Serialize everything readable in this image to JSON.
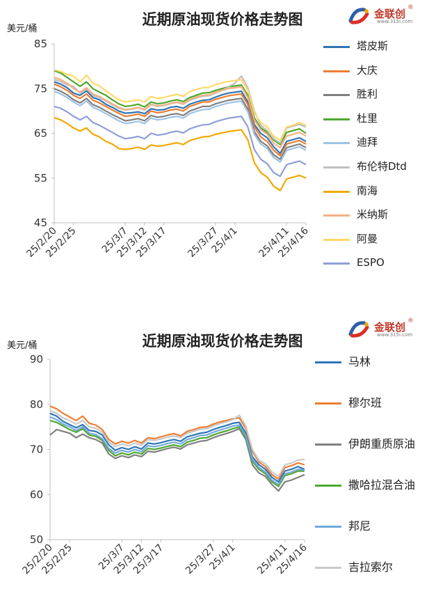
{
  "charts": [
    {
      "title": "近期原油现货价格走势图",
      "unit": "美元/桶",
      "logo": {
        "name": "金联创",
        "reg": "®",
        "url": "www.315i.com"
      }
    },
    {
      "title": "近期原油现货价格走势图",
      "unit": "美元/桶",
      "logo": {
        "name": "金联创",
        "reg": "®",
        "url": "www.315i.com"
      }
    }
  ],
  "chart_data": [
    {
      "type": "line",
      "title": "近期原油现货价格走势图",
      "ylabel": "美元/桶",
      "ylim": [
        45,
        85
      ],
      "yticks": [
        45,
        55,
        65,
        75,
        85
      ],
      "x": [
        "25/2/20",
        "25/2/21",
        "25/2/24",
        "25/2/25",
        "25/2/26",
        "25/2/27",
        "25/2/28",
        "25/3/3",
        "25/3/4",
        "25/3/5",
        "25/3/6",
        "25/3/7",
        "25/3/10",
        "25/3/11",
        "25/3/12",
        "25/3/13",
        "25/3/14",
        "25/3/17",
        "25/3/18",
        "25/3/19",
        "25/3/20",
        "25/3/21",
        "25/3/24",
        "25/3/25",
        "25/3/26",
        "25/3/27",
        "25/3/28",
        "25/3/31",
        "25/4/1",
        "25/4/2",
        "25/4/3",
        "25/4/4",
        "25/4/7",
        "25/4/8",
        "25/4/9",
        "25/4/10",
        "25/4/11",
        "25/4/14",
        "25/4/15",
        "25/4/16"
      ],
      "xticks": [
        "25/2/20",
        "25/2/25",
        "25/3/2",
        "25/3/7",
        "25/3/12",
        "25/3/17",
        "25/3/22",
        "25/3/27",
        "25/4/1",
        "25/4/6",
        "25/4/11",
        "25/4/16"
      ],
      "legend_position": "right",
      "series": [
        {
          "name": "塔皮斯",
          "color": "#2e75b6",
          "values": [
            76.5,
            76.0,
            75.2,
            74.0,
            73.5,
            74.5,
            73.0,
            72.5,
            71.5,
            70.8,
            70.0,
            69.5,
            69.6,
            69.8,
            69.4,
            70.5,
            70.2,
            70.3,
            70.8,
            71.0,
            70.6,
            71.5,
            72.0,
            72.4,
            72.5,
            73.1,
            73.6,
            74.0,
            74.2,
            74.4,
            72.0,
            67.0,
            65.0,
            64.0,
            62.0,
            60.5,
            63.2,
            63.6,
            64.0,
            63.2
          ]
        },
        {
          "name": "大庆",
          "color": "#ed7d31",
          "values": [
            76.0,
            75.4,
            74.6,
            73.5,
            72.8,
            73.8,
            72.4,
            71.8,
            71.0,
            70.2,
            69.5,
            68.8,
            69.0,
            69.3,
            68.8,
            70.0,
            69.6,
            69.8,
            70.2,
            70.4,
            70.0,
            71.0,
            71.5,
            72.0,
            72.0,
            72.6,
            73.0,
            73.4,
            73.6,
            73.8,
            71.4,
            66.4,
            64.2,
            63.2,
            61.2,
            60.0,
            62.6,
            63.0,
            63.4,
            62.6
          ]
        },
        {
          "name": "胜利",
          "color": "#7f7f7f",
          "values": [
            75.0,
            74.4,
            73.6,
            72.5,
            71.8,
            72.8,
            71.4,
            70.8,
            70.0,
            69.2,
            68.5,
            67.8,
            68.0,
            68.3,
            67.8,
            69.0,
            68.6,
            68.8,
            69.2,
            69.4,
            69.0,
            70.0,
            70.5,
            71.0,
            71.0,
            71.6,
            72.0,
            72.4,
            72.6,
            72.8,
            70.4,
            65.4,
            63.2,
            62.2,
            60.2,
            59.2,
            61.8,
            62.2,
            62.6,
            61.8
          ]
        },
        {
          "name": "杜里",
          "color": "#4ea72e",
          "values": [
            79.0,
            78.5,
            77.5,
            76.5,
            75.5,
            76.5,
            75.0,
            74.2,
            73.5,
            72.5,
            71.6,
            71.0,
            71.2,
            71.5,
            70.9,
            72.0,
            71.6,
            71.8,
            72.2,
            72.5,
            72.1,
            73.0,
            73.5,
            74.0,
            74.1,
            74.6,
            75.0,
            75.4,
            75.6,
            75.8,
            73.5,
            68.5,
            66.2,
            65.2,
            63.5,
            62.5,
            65.2,
            65.6,
            66.0,
            65.0
          ]
        },
        {
          "name": "迪拜",
          "color": "#9dc3e6",
          "values": [
            74.4,
            73.8,
            73.0,
            72.0,
            71.2,
            72.2,
            70.8,
            70.2,
            69.4,
            68.6,
            67.8,
            67.2,
            67.4,
            67.7,
            67.2,
            68.4,
            68.0,
            68.2,
            68.6,
            68.8,
            68.4,
            69.4,
            69.9,
            70.3,
            70.4,
            71.0,
            71.4,
            71.8,
            72.0,
            72.2,
            69.8,
            64.8,
            62.6,
            61.6,
            59.6,
            58.6,
            61.2,
            61.6,
            62.0,
            61.2
          ]
        },
        {
          "name": "布伦特Dtd",
          "color": "#bfbfbf",
          "values": [
            77.0,
            76.6,
            75.8,
            75.5,
            74.0,
            75.0,
            73.5,
            73.0,
            72.2,
            71.4,
            70.6,
            70.2,
            70.4,
            70.7,
            70.2,
            71.4,
            71.0,
            71.2,
            71.6,
            71.9,
            71.5,
            72.4,
            72.9,
            73.3,
            73.4,
            74.0,
            74.6,
            75.4,
            76.2,
            77.8,
            75.2,
            70.0,
            66.8,
            65.6,
            63.8,
            62.8,
            66.2,
            66.6,
            67.0,
            66.4
          ]
        },
        {
          "name": "南海",
          "color": "#f1a900",
          "values": [
            68.5,
            68.0,
            67.2,
            66.2,
            65.5,
            66.2,
            64.8,
            64.2,
            63.2,
            62.6,
            61.6,
            61.4,
            61.6,
            61.9,
            61.4,
            62.4,
            62.1,
            62.3,
            62.6,
            62.9,
            62.5,
            63.4,
            63.8,
            64.2,
            64.3,
            64.8,
            65.1,
            65.4,
            65.6,
            65.8,
            63.5,
            58.5,
            56.2,
            55.2,
            53.2,
            52.2,
            54.8,
            55.2,
            55.6,
            55.0
          ]
        },
        {
          "name": "米纳斯",
          "color": "#f4b183",
          "values": [
            77.5,
            77.0,
            76.2,
            75.0,
            74.2,
            75.2,
            73.8,
            73.2,
            72.4,
            71.6,
            70.8,
            70.3,
            70.5,
            70.8,
            70.3,
            71.5,
            71.1,
            71.3,
            71.7,
            72.0,
            71.6,
            72.6,
            73.1,
            73.5,
            73.6,
            74.2,
            74.6,
            75.0,
            75.2,
            75.4,
            73.0,
            68.0,
            65.8,
            64.8,
            62.8,
            61.8,
            64.4,
            64.8,
            65.2,
            64.4
          ]
        },
        {
          "name": "阿曼",
          "color": "#ffd966",
          "values": [
            79.2,
            78.8,
            78.2,
            77.8,
            76.5,
            78.0,
            76.2,
            75.6,
            74.5,
            73.5,
            72.5,
            72.0,
            72.2,
            72.5,
            72.0,
            73.2,
            72.8,
            73.0,
            73.4,
            73.7,
            73.3,
            74.3,
            74.8,
            75.2,
            75.3,
            75.9,
            76.3,
            76.6,
            76.8,
            77.0,
            74.6,
            69.6,
            67.4,
            66.4,
            64.4,
            63.4,
            66.4,
            66.8,
            67.4,
            66.8
          ]
        },
        {
          "name": "ESPO",
          "color": "#8f9ed8",
          "values": [
            71.0,
            70.6,
            69.8,
            68.8,
            68.0,
            68.8,
            67.4,
            66.8,
            66.0,
            65.2,
            64.4,
            63.8,
            64.0,
            64.3,
            63.8,
            65.0,
            64.6,
            64.8,
            65.2,
            65.5,
            65.1,
            66.0,
            66.5,
            66.9,
            67.0,
            67.6,
            68.0,
            68.4,
            68.6,
            68.8,
            66.4,
            61.4,
            59.2,
            58.2,
            56.2,
            55.4,
            58.0,
            58.4,
            58.8,
            58.0
          ]
        }
      ]
    },
    {
      "type": "line",
      "title": "近期原油现货价格走势图",
      "ylabel": "美元/桶",
      "ylim": [
        50,
        90
      ],
      "yticks": [
        50,
        60,
        70,
        80,
        90
      ],
      "x": [
        "25/2/20",
        "25/2/21",
        "25/2/24",
        "25/2/25",
        "25/2/26",
        "25/2/27",
        "25/2/28",
        "25/3/3",
        "25/3/4",
        "25/3/5",
        "25/3/6",
        "25/3/7",
        "25/3/10",
        "25/3/11",
        "25/3/12",
        "25/3/13",
        "25/3/14",
        "25/3/17",
        "25/3/18",
        "25/3/19",
        "25/3/20",
        "25/3/21",
        "25/3/24",
        "25/3/25",
        "25/3/26",
        "25/3/27",
        "25/3/28",
        "25/3/31",
        "25/4/1",
        "25/4/2",
        "25/4/3",
        "25/4/4",
        "25/4/7",
        "25/4/8",
        "25/4/9",
        "25/4/10",
        "25/4/11",
        "25/4/14",
        "25/4/15",
        "25/4/16"
      ],
      "xticks": [
        "25/2/20",
        "25/2/25",
        "25/3/2",
        "25/3/7",
        "25/3/12",
        "25/3/17",
        "25/3/22",
        "25/3/27",
        "25/4/1",
        "25/4/6",
        "25/4/11",
        "25/4/16"
      ],
      "legend_position": "right",
      "series": [
        {
          "name": "马林",
          "color": "#2e75b6",
          "values": [
            78.0,
            77.4,
            76.2,
            75.5,
            74.8,
            75.5,
            74.2,
            74.0,
            73.2,
            71.0,
            69.8,
            70.4,
            70.0,
            70.6,
            70.1,
            71.4,
            71.2,
            71.5,
            71.9,
            72.2,
            71.8,
            72.8,
            73.2,
            73.6,
            73.8,
            74.4,
            74.9,
            75.3,
            75.8,
            76.0,
            73.6,
            68.4,
            66.6,
            65.6,
            63.8,
            62.8,
            65.2,
            65.6,
            66.2,
            65.6
          ]
        },
        {
          "name": "穆尔班",
          "color": "#ed7d31",
          "values": [
            79.6,
            79.0,
            78.0,
            77.2,
            76.4,
            77.4,
            75.8,
            75.4,
            74.4,
            72.2,
            71.2,
            71.8,
            71.4,
            72.0,
            71.4,
            72.6,
            72.4,
            72.8,
            73.2,
            73.5,
            73.0,
            74.0,
            74.4,
            74.9,
            75.0,
            75.6,
            76.1,
            76.4,
            76.8,
            77.0,
            74.6,
            69.6,
            67.2,
            66.2,
            64.4,
            63.4,
            66.0,
            66.4,
            67.0,
            66.6
          ]
        },
        {
          "name": "伊朗重质原油",
          "color": "#7f7f7f",
          "values": [
            73.2,
            74.4,
            74.0,
            73.6,
            72.6,
            73.4,
            72.6,
            72.2,
            71.4,
            69.0,
            68.0,
            68.6,
            68.2,
            68.8,
            68.4,
            69.6,
            69.4,
            69.8,
            70.2,
            70.5,
            70.1,
            71.0,
            71.4,
            71.8,
            72.0,
            72.6,
            73.1,
            73.5,
            74.0,
            74.6,
            72.2,
            66.6,
            64.8,
            64.0,
            62.2,
            60.8,
            62.8,
            63.2,
            63.8,
            64.4
          ]
        },
        {
          "name": "撒哈拉混合油",
          "color": "#4ea72e",
          "values": [
            76.4,
            76.0,
            75.2,
            74.4,
            73.8,
            74.6,
            73.2,
            72.9,
            72.0,
            69.8,
            68.6,
            69.2,
            68.8,
            69.4,
            69.0,
            70.2,
            70.0,
            70.3,
            70.7,
            71.0,
            70.6,
            71.6,
            72.0,
            72.5,
            72.6,
            73.2,
            73.7,
            74.1,
            74.6,
            75.0,
            72.6,
            67.4,
            65.6,
            64.6,
            62.8,
            61.8,
            64.2,
            64.6,
            65.2,
            65.2
          ]
        },
        {
          "name": "邦尼",
          "color": "#71a9dd",
          "values": [
            77.2,
            76.6,
            75.6,
            75.0,
            74.2,
            75.0,
            73.6,
            73.3,
            72.4,
            70.2,
            69.2,
            69.8,
            69.4,
            70.0,
            69.5,
            70.8,
            70.6,
            70.9,
            71.3,
            71.6,
            71.2,
            72.2,
            72.6,
            73.1,
            73.2,
            73.8,
            74.3,
            74.7,
            75.2,
            75.4,
            73.0,
            67.8,
            66.0,
            65.0,
            63.2,
            62.2,
            64.6,
            65.0,
            65.6,
            65.4
          ]
        },
        {
          "name": "吉拉索尔",
          "color": "#c9c9c9",
          "values": [
            78.6,
            78.0,
            77.0,
            76.4,
            75.6,
            76.4,
            75.0,
            74.7,
            73.8,
            71.6,
            70.6,
            71.2,
            70.8,
            71.4,
            70.9,
            72.2,
            72.0,
            72.3,
            72.7,
            73.0,
            72.6,
            73.6,
            74.0,
            74.5,
            74.6,
            75.2,
            75.7,
            76.1,
            76.6,
            77.6,
            75.2,
            70.0,
            67.6,
            66.8,
            65.0,
            64.0,
            66.6,
            67.0,
            67.6,
            67.8
          ]
        }
      ]
    }
  ]
}
